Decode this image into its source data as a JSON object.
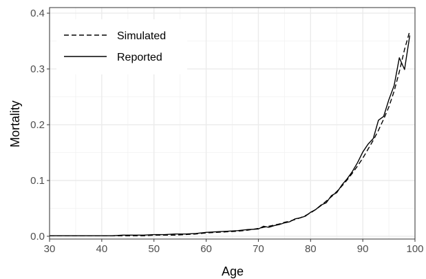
{
  "chart_data": {
    "type": "line",
    "xlabel": "Age",
    "ylabel": "Mortality",
    "xlim": [
      30,
      100
    ],
    "ylim": [
      -0.005,
      0.41
    ],
    "x_ticks": [
      30,
      40,
      50,
      60,
      70,
      80,
      90,
      100
    ],
    "x_tick_labels": [
      "30",
      "40",
      "50",
      "60",
      "70",
      "80",
      "90",
      "100"
    ],
    "y_ticks": [
      0.0,
      0.1,
      0.2,
      0.3,
      0.4
    ],
    "y_tick_labels": [
      "0.0",
      "0.1",
      "0.2",
      "0.3",
      "0.4"
    ],
    "grid": true,
    "legend_position": "top-left",
    "series": [
      {
        "name": "Simulated",
        "line_style": "dashed",
        "x": [
          30,
          32,
          34,
          36,
          38,
          40,
          42,
          44,
          46,
          48,
          50,
          52,
          54,
          56,
          58,
          60,
          62,
          64,
          66,
          68,
          70,
          71,
          72,
          73,
          74,
          75,
          76,
          77,
          78,
          79,
          80,
          81,
          82,
          83,
          84,
          85,
          86,
          87,
          88,
          89,
          90,
          91,
          92,
          93,
          94,
          95,
          96,
          97,
          98,
          99
        ],
        "y": [
          0.001,
          0.001,
          0.001,
          0.001,
          0.001,
          0.001,
          0.001,
          0.001,
          0.001,
          0.001,
          0.002,
          0.002,
          0.002,
          0.003,
          0.004,
          0.006,
          0.007,
          0.008,
          0.009,
          0.011,
          0.014,
          0.016,
          0.018,
          0.02,
          0.022,
          0.025,
          0.027,
          0.03,
          0.033,
          0.037,
          0.042,
          0.048,
          0.055,
          0.063,
          0.071,
          0.08,
          0.09,
          0.101,
          0.113,
          0.126,
          0.14,
          0.156,
          0.172,
          0.19,
          0.21,
          0.232,
          0.26,
          0.295,
          0.335,
          0.368
        ]
      },
      {
        "name": "Reported",
        "line_style": "solid",
        "x": [
          30,
          32,
          34,
          36,
          38,
          40,
          42,
          44,
          46,
          48,
          50,
          52,
          54,
          56,
          58,
          60,
          62,
          64,
          66,
          68,
          70,
          71,
          72,
          73,
          74,
          75,
          76,
          77,
          78,
          79,
          80,
          81,
          82,
          83,
          84,
          85,
          86,
          87,
          88,
          89,
          90,
          91,
          92,
          93,
          94,
          95,
          96,
          97,
          98,
          99
        ],
        "y": [
          0.001,
          0.001,
          0.001,
          0.001,
          0.001,
          0.001,
          0.001,
          0.002,
          0.002,
          0.002,
          0.003,
          0.003,
          0.004,
          0.004,
          0.005,
          0.007,
          0.008,
          0.009,
          0.01,
          0.012,
          0.013,
          0.018,
          0.016,
          0.019,
          0.021,
          0.024,
          0.026,
          0.031,
          0.033,
          0.036,
          0.043,
          0.048,
          0.056,
          0.06,
          0.073,
          0.078,
          0.092,
          0.103,
          0.116,
          0.132,
          0.151,
          0.165,
          0.175,
          0.208,
          0.215,
          0.245,
          0.27,
          0.32,
          0.299,
          0.36
        ]
      }
    ]
  }
}
